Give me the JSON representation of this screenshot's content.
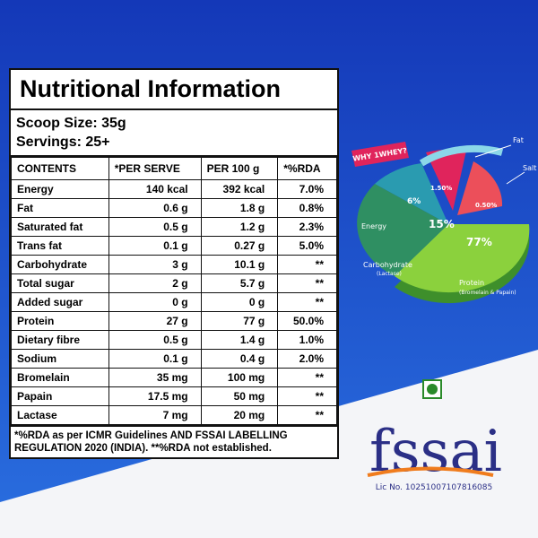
{
  "table": {
    "title": "Nutritional Information",
    "scoop_size": "Scoop Size: 35g",
    "servings": "Servings: 25+",
    "header": [
      "CONTENTS",
      "*PER SERVE",
      "PER 100 g",
      "*%RDA"
    ],
    "rows": [
      [
        "Energy",
        "140 kcal",
        "392 kcal",
        "7.0%"
      ],
      [
        "Fat",
        "0.6 g",
        "1.8 g",
        "0.8%"
      ],
      [
        "Saturated fat",
        "0.5 g",
        "1.2 g",
        "2.3%"
      ],
      [
        "Trans fat",
        "0.1 g",
        "0.27 g",
        "5.0%"
      ],
      [
        "Carbohydrate",
        "3 g",
        "10.1 g",
        "**"
      ],
      [
        "Total sugar",
        "2 g",
        "5.7 g",
        "**"
      ],
      [
        "Added sugar",
        "0 g",
        "0 g",
        "**"
      ],
      [
        "Protein",
        "27 g",
        "77 g",
        "50.0%"
      ],
      [
        "Dietary fibre",
        "0.5 g",
        "1.4 g",
        "1.0%"
      ],
      [
        "Sodium",
        "0.1 g",
        "0.4 g",
        "2.0%"
      ],
      [
        "Bromelain",
        "35 mg",
        "100 mg",
        "**"
      ],
      [
        "Papain",
        "17.5 mg",
        "50 mg",
        "**"
      ],
      [
        "Lactase",
        "7 mg",
        "20 mg",
        "**"
      ]
    ],
    "footnote": "*%RDA as per ICMR Guidelines AND FSSAI LABELLING REGULATION 2020 (INDIA). **%RDA not established."
  },
  "infographic": {
    "badge": "WHY 1WHEY?",
    "fat": {
      "name": "Fat",
      "percent": "1.50%"
    },
    "salt": {
      "name": "Salt",
      "percent": "0.50%"
    },
    "energy": {
      "name": "Energy",
      "percent": "6%"
    },
    "carbohydrate": {
      "name": "Carbohydrate",
      "note": "(Lactase)",
      "percent": "15%"
    },
    "protein": {
      "name": "Protein",
      "note": "(Bromelain & Papain)",
      "percent": "77%"
    }
  },
  "logo": {
    "text": "fssai",
    "license": "Lic No. 10251007107816085"
  }
}
